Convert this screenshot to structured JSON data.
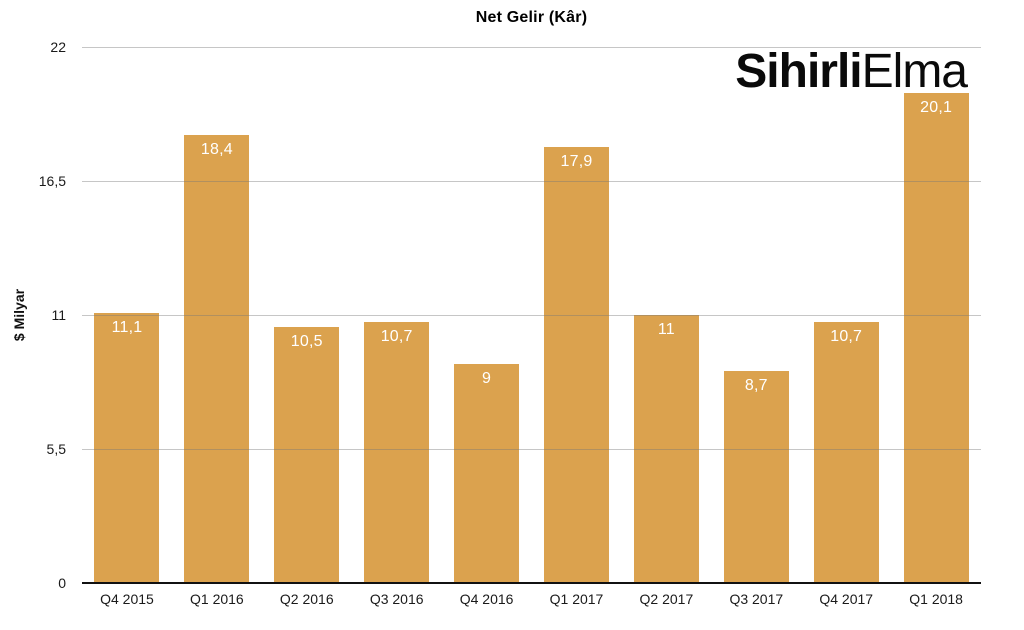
{
  "title": "Net Gelir (Kâr)",
  "logo": {
    "bold_part": "Sihirli",
    "light_part": "Elma"
  },
  "colors": {
    "bar": "#dba24e",
    "gridline": "#c6c6c6",
    "axis": "#111111",
    "value_label": "#ffffff",
    "text": "#1a1a1a"
  },
  "chart_data": {
    "type": "bar",
    "title": "Net Gelir (Kâr)",
    "xlabel": "",
    "ylabel": "$ Milyar",
    "ylim": [
      0,
      22
    ],
    "grid": "horizontal",
    "legend": "none",
    "yticks": [
      {
        "value": 0,
        "label": "0"
      },
      {
        "value": 5.5,
        "label": "5,5"
      },
      {
        "value": 11,
        "label": "11"
      },
      {
        "value": 16.5,
        "label": "16,5"
      },
      {
        "value": 22,
        "label": "22"
      }
    ],
    "categories": [
      "Q4 2015",
      "Q1 2016",
      "Q2 2016",
      "Q3 2016",
      "Q4 2016",
      "Q1 2017",
      "Q2 2017",
      "Q3 2017",
      "Q4 2017",
      "Q1 2018"
    ],
    "values": [
      11.1,
      18.4,
      10.5,
      10.7,
      9,
      17.9,
      11,
      8.7,
      10.7,
      20.1
    ],
    "value_labels": [
      "11,1",
      "18,4",
      "10,5",
      "10,7",
      "9",
      "17,9",
      "11",
      "8,7",
      "10,7",
      "20,1"
    ]
  }
}
